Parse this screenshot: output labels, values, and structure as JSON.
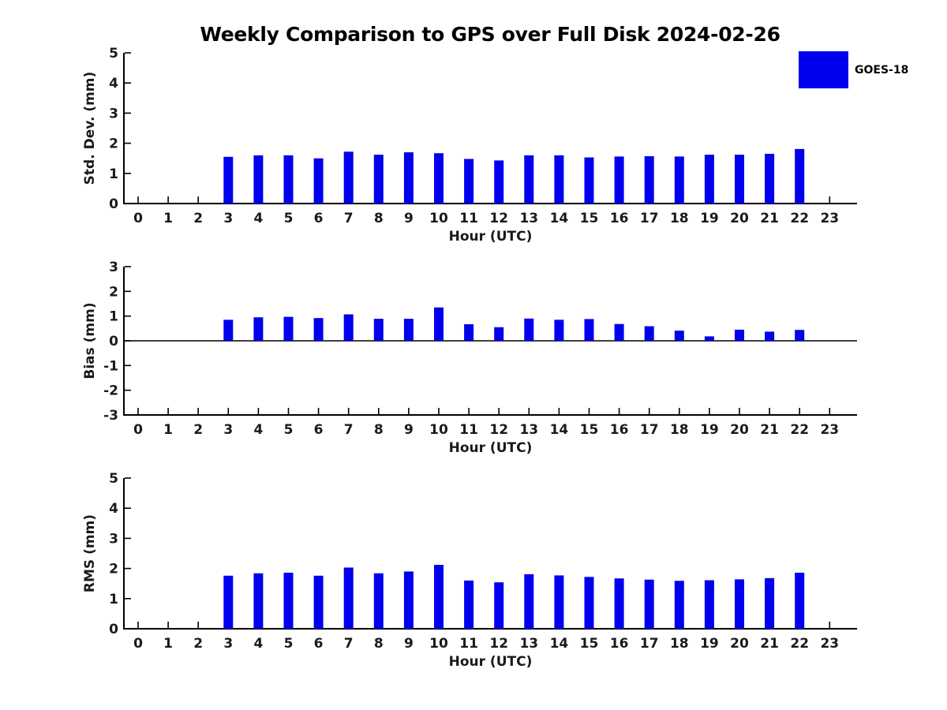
{
  "title": "Weekly Comparison to GPS over Full Disk 2024-02-26",
  "legend": {
    "label": "GOES-18",
    "color": "#0000ee",
    "position": "top-right"
  },
  "colors": {
    "bar": "#0000ee",
    "axis": "#000000",
    "tick_text": "#1a1a1a",
    "background": "#ffffff"
  },
  "chart_data": [
    {
      "type": "bar",
      "title": "Weekly Comparison to GPS over Full Disk 2024-02-26",
      "ylabel": "Std. Dev. (mm)",
      "xlabel": "Hour (UTC)",
      "ylim": [
        0,
        5
      ],
      "yticks": [
        0,
        1,
        2,
        3,
        4,
        5
      ],
      "grid": false,
      "legend_entries": [
        "GOES-18"
      ],
      "categories": [
        "0",
        "1",
        "2",
        "3",
        "4",
        "5",
        "6",
        "7",
        "8",
        "9",
        "10",
        "11",
        "12",
        "13",
        "14",
        "15",
        "16",
        "17",
        "18",
        "19",
        "20",
        "21",
        "22",
        "23"
      ],
      "series": [
        {
          "name": "GOES-18",
          "values": [
            null,
            null,
            null,
            1.55,
            1.6,
            1.6,
            1.5,
            1.72,
            1.62,
            1.7,
            1.67,
            1.48,
            1.43,
            1.6,
            1.6,
            1.53,
            1.56,
            1.57,
            1.56,
            1.62,
            1.62,
            1.65,
            1.81,
            null
          ]
        }
      ]
    },
    {
      "type": "bar",
      "title": "",
      "ylabel": "Bias (mm)",
      "xlabel": "Hour (UTC)",
      "ylim": [
        -3,
        3
      ],
      "yticks": [
        -3,
        -2,
        -1,
        0,
        1,
        2,
        3
      ],
      "zero_line": true,
      "grid": false,
      "legend_entries": [
        "GOES-18"
      ],
      "categories": [
        "0",
        "1",
        "2",
        "3",
        "4",
        "5",
        "6",
        "7",
        "8",
        "9",
        "10",
        "11",
        "12",
        "13",
        "14",
        "15",
        "16",
        "17",
        "18",
        "19",
        "20",
        "21",
        "22",
        "23"
      ],
      "series": [
        {
          "name": "GOES-18",
          "values": [
            null,
            null,
            null,
            0.85,
            0.95,
            0.97,
            0.92,
            1.07,
            0.89,
            0.89,
            1.35,
            0.67,
            0.55,
            0.9,
            0.85,
            0.88,
            0.68,
            0.59,
            0.41,
            0.18,
            0.45,
            0.37,
            0.44,
            null
          ]
        }
      ]
    },
    {
      "type": "bar",
      "title": "",
      "ylabel": "RMS (mm)",
      "xlabel": "Hour (UTC)",
      "ylim": [
        0,
        5
      ],
      "yticks": [
        0,
        1,
        2,
        3,
        4,
        5
      ],
      "grid": false,
      "legend_entries": [
        "GOES-18"
      ],
      "categories": [
        "0",
        "1",
        "2",
        "3",
        "4",
        "5",
        "6",
        "7",
        "8",
        "9",
        "10",
        "11",
        "12",
        "13",
        "14",
        "15",
        "16",
        "17",
        "18",
        "19",
        "20",
        "21",
        "22",
        "23"
      ],
      "series": [
        {
          "name": "GOES-18",
          "values": [
            null,
            null,
            null,
            1.76,
            1.84,
            1.86,
            1.76,
            2.03,
            1.84,
            1.9,
            2.12,
            1.6,
            1.54,
            1.81,
            1.77,
            1.72,
            1.67,
            1.63,
            1.59,
            1.61,
            1.64,
            1.68,
            1.86,
            null
          ]
        }
      ]
    }
  ]
}
